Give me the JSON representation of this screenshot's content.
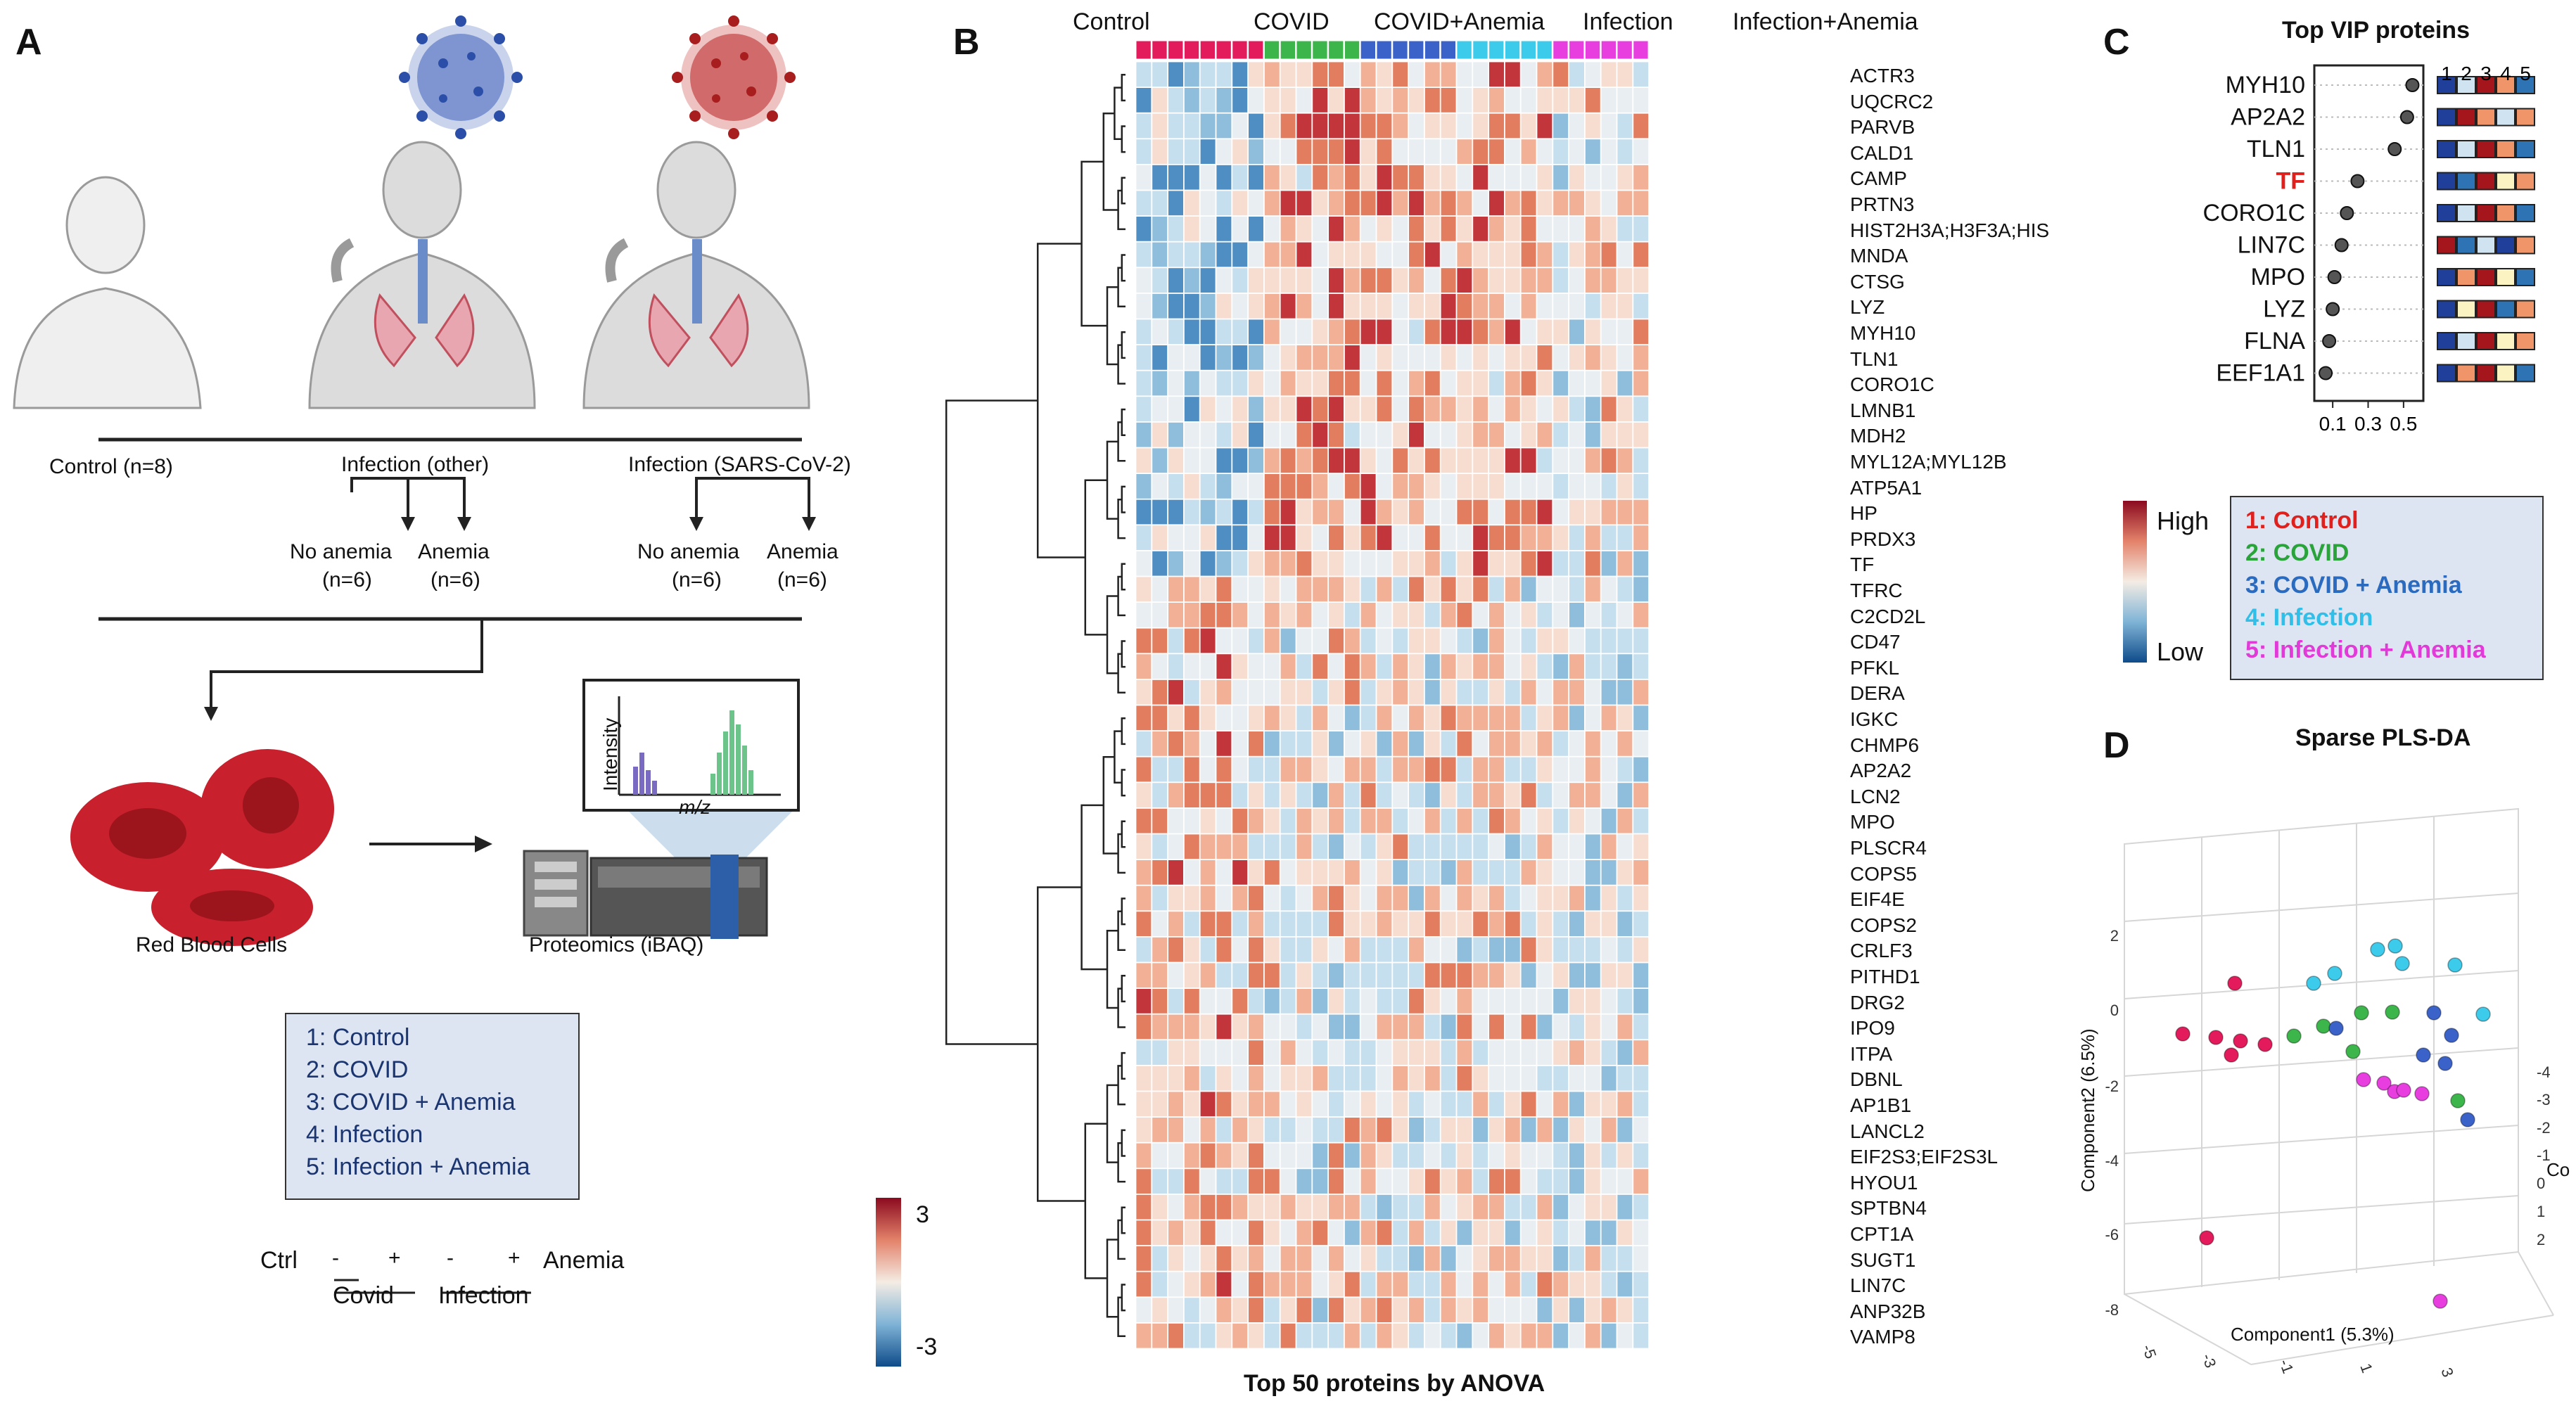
{
  "panels": {
    "a": "A",
    "b": "B",
    "c": "C",
    "d": "D"
  },
  "panel_a": {
    "groups": {
      "control": "Control (n=8)",
      "infection_other": "Infection (other)",
      "infection_sars": "Infection (SARS-CoV-2)",
      "no_anemia": "No anemia",
      "anemia": "Anemia",
      "n6": "(n=6)"
    },
    "red_blood_cells": "Red Blood Cells",
    "proteomics": "Proteomics (iBAQ)",
    "intensity": "Intensity",
    "mz": "m/z",
    "legend": [
      "1: Control",
      "2: COVID",
      "3: COVID + Anemia",
      "4: Infection",
      "5: Infection + Anemia"
    ],
    "design": {
      "ctrl": "Ctrl",
      "minus": "-",
      "plus": "+",
      "anemia": "Anemia",
      "covid": "Covid",
      "infection": "Infection"
    }
  },
  "panel_b": {
    "title": "Top 50 proteins by ANOVA",
    "group_labels": [
      "Control",
      "COVID",
      "COVID+Anemia",
      "Infection",
      "Infection+Anemia"
    ],
    "group_colors": [
      "#e31a5c",
      "#3cb54a",
      "#3a62c8",
      "#3ccbea",
      "#e83ee0"
    ],
    "group_sizes": [
      8,
      6,
      6,
      6,
      6
    ],
    "scale_max": "3",
    "scale_min": "-3",
    "proteins": [
      "ACTR3",
      "UQCRC2",
      "PARVB",
      "CALD1",
      "CAMP",
      "PRTN3",
      "HIST2H3A;H3F3A;HIS",
      "MNDA",
      "CTSG",
      "LYZ",
      "MYH10",
      "TLN1",
      "CORO1C",
      "LMNB1",
      "MDH2",
      "MYL12A;MYL12B",
      "ATP5A1",
      "HP",
      "PRDX3",
      "TF",
      "TFRC",
      "C2CD2L",
      "CD47",
      "PFKL",
      "DERA",
      "IGKC",
      "CHMP6",
      "AP2A2",
      "LCN2",
      "MPO",
      "PLSCR4",
      "COPS5",
      "EIF4E",
      "COPS2",
      "CRLF3",
      "PITHD1",
      "DRG2",
      "IPO9",
      "ITPA",
      "DBNL",
      "AP1B1",
      "LANCL2",
      "EIF2S3;EIF2S3L",
      "HYOU1",
      "SPTBN4",
      "CPT1A",
      "SUGT1",
      "LIN7C",
      "ANP32B",
      "VAMP8"
    ]
  },
  "panel_c": {
    "title": "Top VIP proteins",
    "proteins": [
      "MYH10",
      "AP2A2",
      "TLN1",
      "TF",
      "CORO1C",
      "LIN7C",
      "MPO",
      "LYZ",
      "FLNA",
      "EEF1A1"
    ],
    "highlight_color": "#e0201c",
    "vip_values": [
      0.55,
      0.52,
      0.45,
      0.24,
      0.18,
      0.15,
      0.11,
      0.1,
      0.08,
      0.06
    ],
    "x_ticks": [
      "0.1",
      "0.3",
      "0.5"
    ],
    "group_numbers": [
      "1",
      "2",
      "3",
      "4",
      "5"
    ],
    "tile_colors": [
      [
        "#1f3f9a",
        "#d0e3f0",
        "#a5161c",
        "#f0956a",
        "#2e74b5"
      ],
      [
        "#1f3f9a",
        "#a5161c",
        "#f0956a",
        "#d0e3f0",
        "#f0956a"
      ],
      [
        "#1f3f9a",
        "#d0e3f0",
        "#a5161c",
        "#f0956a",
        "#2e74b5"
      ],
      [
        "#1f3f9a",
        "#2e74b5",
        "#a5161c",
        "#fbf3c2",
        "#f0956a"
      ],
      [
        "#1f3f9a",
        "#d0e3f0",
        "#a5161c",
        "#f0956a",
        "#2e74b5"
      ],
      [
        "#a5161c",
        "#2e74b5",
        "#d0e3f0",
        "#1f3f9a",
        "#f0956a"
      ],
      [
        "#1f3f9a",
        "#f0956a",
        "#a5161c",
        "#fbf3c2",
        "#2e74b5"
      ],
      [
        "#1f3f9a",
        "#fbf3c2",
        "#a5161c",
        "#2e74b5",
        "#f0956a"
      ],
      [
        "#1f3f9a",
        "#d0e3f0",
        "#a5161c",
        "#fbf3c2",
        "#f0956a"
      ],
      [
        "#1f3f9a",
        "#f0956a",
        "#a5161c",
        "#fbf3c2",
        "#2e74b5"
      ]
    ],
    "scale_high": "High",
    "scale_low": "Low",
    "legend": [
      "1: Control",
      "2: COVID",
      "3: COVID + Anemia",
      "4: Infection",
      "5: Infection + Anemia"
    ],
    "legend_colors": [
      "#e0201c",
      "#2aa33b",
      "#2a6bc0",
      "#2fbfe8",
      "#e23ad8"
    ]
  },
  "panel_d": {
    "title": "Sparse PLS-DA",
    "xlabel": "Component1 (5.3%)",
    "ylabel": "Component2 (6.5%)",
    "zlabel": "Co",
    "y_ticks": [
      "2",
      "0",
      "-2",
      "-4",
      "-6",
      "-8"
    ],
    "x_ticks": [
      "-5",
      "-3",
      "-1",
      "1",
      "3"
    ],
    "z_ticks": [
      "-4",
      "-3",
      "-2",
      "-1",
      "0",
      "1",
      "2"
    ]
  }
}
